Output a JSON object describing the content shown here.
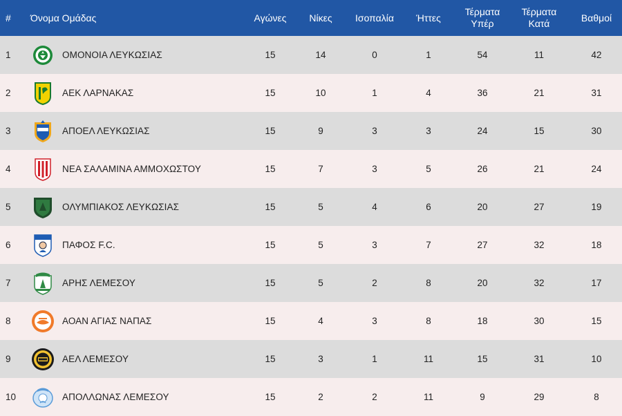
{
  "headers": {
    "pos": "#",
    "team": "Όνομα Ομάδας",
    "played": "Αγώνες",
    "wins": "Νίκες",
    "draws": "Ισοπαλία",
    "losses": "Ήττες",
    "gf_line1": "Τέρματα",
    "gf_line2": "Υπέρ",
    "ga_line1": "Τέρματα",
    "ga_line2": "Κατά",
    "points": "Βαθμοί"
  },
  "rows": [
    {
      "pos": "1",
      "team": "ΟΜΟΝΟΙΑ ΛΕΥΚΩΣΙΑΣ",
      "logo": "omonoia-crest-icon",
      "played": "15",
      "wins": "14",
      "draws": "0",
      "losses": "1",
      "gf": "54",
      "ga": "11",
      "pts": "42"
    },
    {
      "pos": "2",
      "team": "ΑΕΚ ΛΑΡΝΑΚΑΣ",
      "logo": "aek-larnaca-crest-icon",
      "played": "15",
      "wins": "10",
      "draws": "1",
      "losses": "4",
      "gf": "36",
      "ga": "21",
      "pts": "31"
    },
    {
      "pos": "3",
      "team": "ΑΠΟΕΛ ΛΕΥΚΩΣΙΑΣ",
      "logo": "apoel-crest-icon",
      "played": "15",
      "wins": "9",
      "draws": "3",
      "losses": "3",
      "gf": "24",
      "ga": "15",
      "pts": "30"
    },
    {
      "pos": "4",
      "team": "ΝΕΑ ΣΑΛΑΜΙΝΑ ΑΜΜΟΧΩΣΤΟΥ",
      "logo": "nea-salamina-crest-icon",
      "played": "15",
      "wins": "7",
      "draws": "3",
      "losses": "5",
      "gf": "26",
      "ga": "21",
      "pts": "24"
    },
    {
      "pos": "5",
      "team": "ΟΛΥΜΠΙΑΚΟΣ ΛΕΥΚΩΣΙΑΣ",
      "logo": "olympiakos-nicosia-crest-icon",
      "played": "15",
      "wins": "5",
      "draws": "4",
      "losses": "6",
      "gf": "20",
      "ga": "27",
      "pts": "19"
    },
    {
      "pos": "6",
      "team": "ΠΑΦΟΣ F.C.",
      "logo": "pafos-fc-crest-icon",
      "played": "15",
      "wins": "5",
      "draws": "3",
      "losses": "7",
      "gf": "27",
      "ga": "32",
      "pts": "18"
    },
    {
      "pos": "7",
      "team": "ΑΡΗΣ ΛΕΜΕΣΟΥ",
      "logo": "aris-limassol-crest-icon",
      "played": "15",
      "wins": "5",
      "draws": "2",
      "losses": "8",
      "gf": "20",
      "ga": "32",
      "pts": "17"
    },
    {
      "pos": "8",
      "team": "ΑΟΑΝ ΑΓΙΑΣ ΝΑΠΑΣ",
      "logo": "aoan-agia-napa-crest-icon",
      "played": "15",
      "wins": "4",
      "draws": "3",
      "losses": "8",
      "gf": "18",
      "ga": "30",
      "pts": "15"
    },
    {
      "pos": "9",
      "team": "ΑΕΛ ΛΕΜΕΣΟΥ",
      "logo": "ael-limassol-crest-icon",
      "played": "15",
      "wins": "3",
      "draws": "1",
      "losses": "11",
      "gf": "15",
      "ga": "31",
      "pts": "10"
    },
    {
      "pos": "10",
      "team": "ΑΠΟΛΛΩΝΑΣ ΛΕΜΕΣΟΥ",
      "logo": "apollon-limassol-crest-icon",
      "played": "15",
      "wins": "2",
      "draws": "2",
      "losses": "11",
      "gf": "9",
      "ga": "29",
      "pts": "8"
    }
  ],
  "colors": {
    "header_bg": "#2157a5",
    "row_odd": "#dcdcdc",
    "row_even": "#f7eded"
  }
}
